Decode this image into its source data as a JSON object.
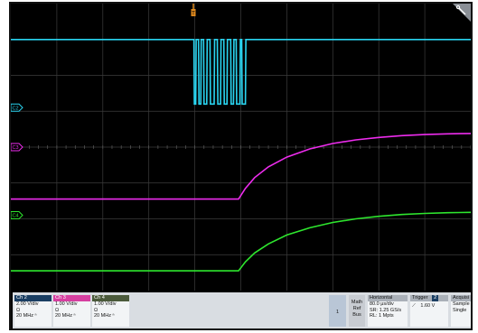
{
  "colors": {
    "background": "#000000",
    "grid": "#3c3c3c",
    "ch2": "#29d4f0",
    "ch3": "#ee2cee",
    "ch4": "#2ee62e",
    "trigger_marker": "#e08a1e",
    "statusbar": "#d9dde2",
    "ch2_header": "#1a3e63",
    "ch3_header": "#d63fa0",
    "ch4_header": "#4b5a3b"
  },
  "markers": {
    "ch2": "C2",
    "ch3": "C3",
    "ch4": "C4",
    "trigger": "T"
  },
  "chart_data": {
    "type": "line",
    "grid": true,
    "x_divisions": 10,
    "y_divisions": 8,
    "series": [
      {
        "name": "C2",
        "channel": 2,
        "x": [
          0,
          3.98,
          3.99,
          4.02,
          4.03,
          4.08,
          4.09,
          4.13,
          4.14,
          4.19,
          4.2,
          4.26,
          4.27,
          4.33,
          4.34,
          4.42,
          4.43,
          4.49,
          4.5,
          4.56,
          4.57,
          4.63,
          4.64,
          4.7,
          4.71,
          4.78,
          4.79,
          4.84,
          4.85,
          4.9,
          4.91,
          4.98,
          4.99,
          5.02,
          5.03,
          5.1,
          5.11,
          10
        ],
        "y": [
          7.0,
          7.0,
          5.2,
          5.2,
          7.0,
          7.0,
          5.2,
          5.2,
          7.0,
          7.0,
          5.2,
          5.2,
          7.0,
          7.0,
          5.2,
          5.2,
          7.0,
          7.0,
          5.2,
          5.2,
          7.0,
          7.0,
          5.2,
          5.2,
          7.0,
          7.0,
          5.2,
          5.2,
          7.0,
          7.0,
          5.2,
          5.2,
          7.0,
          7.0,
          5.2,
          5.2,
          7.0,
          7.0
        ]
      },
      {
        "name": "C3",
        "channel": 3,
        "x": [
          0,
          1,
          2,
          3,
          4,
          4.95,
          5.1,
          5.3,
          5.6,
          6.0,
          6.5,
          7.0,
          7.5,
          8.0,
          8.5,
          9.0,
          9.5,
          10
        ],
        "y": [
          2.55,
          2.55,
          2.55,
          2.55,
          2.55,
          2.55,
          2.85,
          3.15,
          3.45,
          3.72,
          3.95,
          4.1,
          4.2,
          4.27,
          4.32,
          4.35,
          4.37,
          4.38
        ]
      },
      {
        "name": "C4",
        "channel": 4,
        "x": [
          0,
          1,
          2,
          3,
          4,
          4.95,
          5.1,
          5.3,
          5.6,
          6.0,
          6.5,
          7.0,
          7.5,
          8.0,
          8.5,
          9.0,
          9.5,
          10
        ],
        "y": [
          0.55,
          0.55,
          0.55,
          0.55,
          0.55,
          0.55,
          0.8,
          1.05,
          1.3,
          1.55,
          1.75,
          1.9,
          2.0,
          2.07,
          2.12,
          2.15,
          2.17,
          2.18
        ]
      }
    ]
  },
  "status": {
    "ch2": {
      "header": "Ch 2",
      "scale": "2.00 V/div",
      "impedance": "Ω",
      "bandwidth": "20 MHz ⁿ"
    },
    "ch3": {
      "header": "Ch 3",
      "scale": "1.00 V/div",
      "impedance": "Ω",
      "bandwidth": "20 MHz ⁿ"
    },
    "ch4": {
      "header": "Ch 4",
      "scale": "1.00 V/div",
      "impedance": "Ω",
      "bandwidth": "20 MHz ⁿ"
    },
    "buttons": {
      "one": "1",
      "math": "Math",
      "ref": "Ref",
      "bus": "Bus"
    },
    "horizontal": {
      "header": "Horizontal",
      "scale": "80.0 μs/div",
      "sample_rate": "SR: 1.25 GS/s",
      "record_length": "RL: 1 Mpts"
    },
    "trigger": {
      "header": "Trigger",
      "channel_badge": "2",
      "slope": "⟋",
      "level": "1.60 V"
    },
    "acquisition": {
      "header": "Acquisi",
      "mode": "Sample",
      "run": "Single"
    }
  }
}
